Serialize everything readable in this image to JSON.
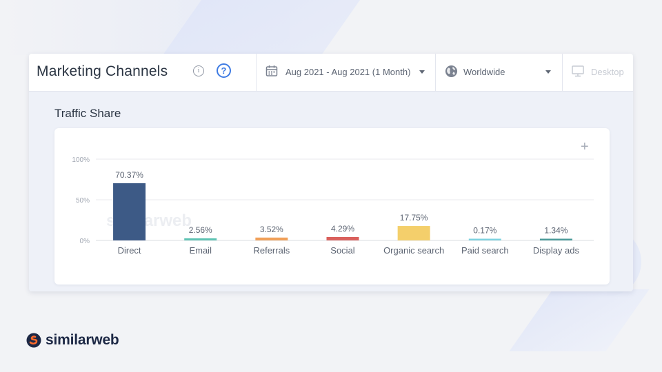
{
  "header": {
    "title": "Marketing Channels",
    "date_range": "Aug 2021 - Aug 2021 (1 Month)",
    "country": "Worldwide",
    "device": "Desktop"
  },
  "section": {
    "title": "Traffic Share"
  },
  "icons": {
    "info": "info-icon",
    "help": "help-icon",
    "date": "calendar-icon",
    "country": "globe-icon",
    "device": "desktop-icon",
    "add": "plus-icon"
  },
  "chart_data": {
    "type": "bar",
    "title": "Traffic Share",
    "categories": [
      "Direct",
      "Email",
      "Referrals",
      "Social",
      "Organic search",
      "Paid search",
      "Display ads"
    ],
    "values": [
      70.37,
      2.56,
      3.52,
      4.29,
      17.75,
      0.17,
      1.34
    ],
    "value_labels": [
      "70.37%",
      "2.56%",
      "3.52%",
      "4.29%",
      "17.75%",
      "0.17%",
      "1.34%"
    ],
    "colors": [
      "#3d5a86",
      "#5fc3b4",
      "#f0a059",
      "#d9605c",
      "#f4cf6b",
      "#7dd3e0",
      "#4b9b9a"
    ],
    "yticks": [
      "100%",
      "50%",
      "0%"
    ],
    "ylim": [
      0,
      100
    ],
    "grid": true,
    "watermark": "similarweb"
  },
  "brand": {
    "name": "similarweb"
  }
}
